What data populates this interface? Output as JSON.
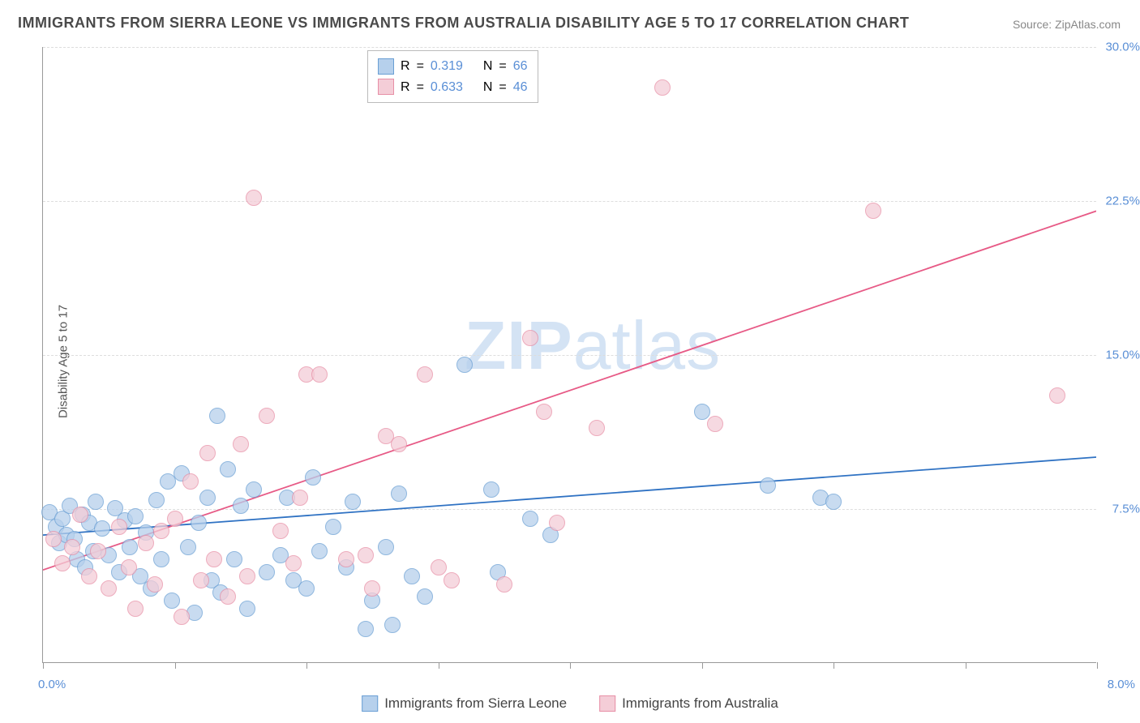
{
  "title": "IMMIGRANTS FROM SIERRA LEONE VS IMMIGRANTS FROM AUSTRALIA DISABILITY AGE 5 TO 17 CORRELATION CHART",
  "source_prefix": "Source: ",
  "source_name": "ZipAtlas.com",
  "y_axis_label": "Disability Age 5 to 17",
  "watermark_bold": "ZIP",
  "watermark_thin": "atlas",
  "chart": {
    "type": "scatter",
    "xlim": [
      0,
      8
    ],
    "ylim": [
      0,
      30
    ],
    "x_ticks": [
      0,
      1,
      2,
      3,
      4,
      5,
      6,
      7,
      8
    ],
    "y_ticks": [
      7.5,
      15.0,
      22.5,
      30.0
    ],
    "y_tick_labels": [
      "7.5%",
      "15.0%",
      "22.5%",
      "30.0%"
    ],
    "x_origin_label": "0.0%",
    "x_max_label": "8.0%",
    "background_color": "#ffffff",
    "grid_color": "#dddddd",
    "marker_radius": 10,
    "series": [
      {
        "id": "sierra_leone",
        "label": "Immigrants from Sierra Leone",
        "fill": "#b6d0ec",
        "stroke": "#6a9fd4",
        "line_color": "#2f72c3",
        "line_width": 1.8,
        "R": "0.319",
        "N": "66",
        "trend": {
          "x1": 0.0,
          "y1": 6.2,
          "x2": 8.0,
          "y2": 10.0
        },
        "points": [
          [
            0.05,
            7.3
          ],
          [
            0.1,
            6.6
          ],
          [
            0.12,
            5.8
          ],
          [
            0.15,
            7.0
          ],
          [
            0.18,
            6.2
          ],
          [
            0.2,
            7.6
          ],
          [
            0.24,
            6.0
          ],
          [
            0.26,
            5.0
          ],
          [
            0.3,
            7.2
          ],
          [
            0.32,
            4.6
          ],
          [
            0.35,
            6.8
          ],
          [
            0.38,
            5.4
          ],
          [
            0.4,
            7.8
          ],
          [
            0.45,
            6.5
          ],
          [
            0.5,
            5.2
          ],
          [
            0.55,
            7.5
          ],
          [
            0.58,
            4.4
          ],
          [
            0.62,
            6.9
          ],
          [
            0.66,
            5.6
          ],
          [
            0.7,
            7.1
          ],
          [
            0.74,
            4.2
          ],
          [
            0.78,
            6.3
          ],
          [
            0.82,
            3.6
          ],
          [
            0.86,
            7.9
          ],
          [
            0.9,
            5.0
          ],
          [
            0.95,
            8.8
          ],
          [
            0.98,
            3.0
          ],
          [
            1.05,
            9.2
          ],
          [
            1.1,
            5.6
          ],
          [
            1.15,
            2.4
          ],
          [
            1.18,
            6.8
          ],
          [
            1.25,
            8.0
          ],
          [
            1.28,
            4.0
          ],
          [
            1.32,
            12.0
          ],
          [
            1.35,
            3.4
          ],
          [
            1.4,
            9.4
          ],
          [
            1.45,
            5.0
          ],
          [
            1.5,
            7.6
          ],
          [
            1.55,
            2.6
          ],
          [
            1.6,
            8.4
          ],
          [
            1.7,
            4.4
          ],
          [
            1.8,
            5.2
          ],
          [
            1.85,
            8.0
          ],
          [
            1.9,
            4.0
          ],
          [
            2.0,
            3.6
          ],
          [
            2.05,
            9.0
          ],
          [
            2.1,
            5.4
          ],
          [
            2.2,
            6.6
          ],
          [
            2.3,
            4.6
          ],
          [
            2.35,
            7.8
          ],
          [
            2.45,
            1.6
          ],
          [
            2.5,
            3.0
          ],
          [
            2.6,
            5.6
          ],
          [
            2.65,
            1.8
          ],
          [
            2.7,
            8.2
          ],
          [
            2.8,
            4.2
          ],
          [
            2.9,
            3.2
          ],
          [
            3.2,
            14.5
          ],
          [
            3.4,
            8.4
          ],
          [
            3.45,
            4.4
          ],
          [
            3.7,
            7.0
          ],
          [
            3.85,
            6.2
          ],
          [
            5.0,
            12.2
          ],
          [
            5.5,
            8.6
          ],
          [
            5.9,
            8.0
          ],
          [
            6.0,
            7.8
          ]
        ]
      },
      {
        "id": "australia",
        "label": "Immigrants from Australia",
        "fill": "#f4cdd7",
        "stroke": "#e78fa6",
        "line_color": "#e75a86",
        "line_width": 1.8,
        "R": "0.633",
        "N": "46",
        "trend": {
          "x1": 0.0,
          "y1": 4.5,
          "x2": 8.0,
          "y2": 22.0
        },
        "points": [
          [
            0.08,
            6.0
          ],
          [
            0.15,
            4.8
          ],
          [
            0.22,
            5.6
          ],
          [
            0.28,
            7.2
          ],
          [
            0.35,
            4.2
          ],
          [
            0.42,
            5.4
          ],
          [
            0.5,
            3.6
          ],
          [
            0.58,
            6.6
          ],
          [
            0.65,
            4.6
          ],
          [
            0.7,
            2.6
          ],
          [
            0.78,
            5.8
          ],
          [
            0.85,
            3.8
          ],
          [
            0.9,
            6.4
          ],
          [
            1.0,
            7.0
          ],
          [
            1.05,
            2.2
          ],
          [
            1.12,
            8.8
          ],
          [
            1.2,
            4.0
          ],
          [
            1.25,
            10.2
          ],
          [
            1.3,
            5.0
          ],
          [
            1.4,
            3.2
          ],
          [
            1.5,
            10.6
          ],
          [
            1.55,
            4.2
          ],
          [
            1.6,
            22.6
          ],
          [
            1.7,
            12.0
          ],
          [
            1.8,
            6.4
          ],
          [
            1.9,
            4.8
          ],
          [
            2.0,
            14.0
          ],
          [
            2.1,
            14.0
          ],
          [
            2.3,
            5.0
          ],
          [
            2.5,
            3.6
          ],
          [
            2.6,
            11.0
          ],
          [
            2.7,
            10.6
          ],
          [
            2.9,
            14.0
          ],
          [
            3.0,
            4.6
          ],
          [
            3.1,
            4.0
          ],
          [
            3.5,
            3.8
          ],
          [
            3.7,
            15.8
          ],
          [
            3.8,
            12.2
          ],
          [
            3.9,
            6.8
          ],
          [
            4.2,
            11.4
          ],
          [
            4.7,
            28.0
          ],
          [
            5.1,
            11.6
          ],
          [
            6.3,
            22.0
          ],
          [
            7.7,
            13.0
          ],
          [
            2.45,
            5.2
          ],
          [
            1.95,
            8.0
          ]
        ]
      }
    ]
  },
  "legend_top": {
    "r_label": "R",
    "n_label": "N",
    "eq": "="
  }
}
